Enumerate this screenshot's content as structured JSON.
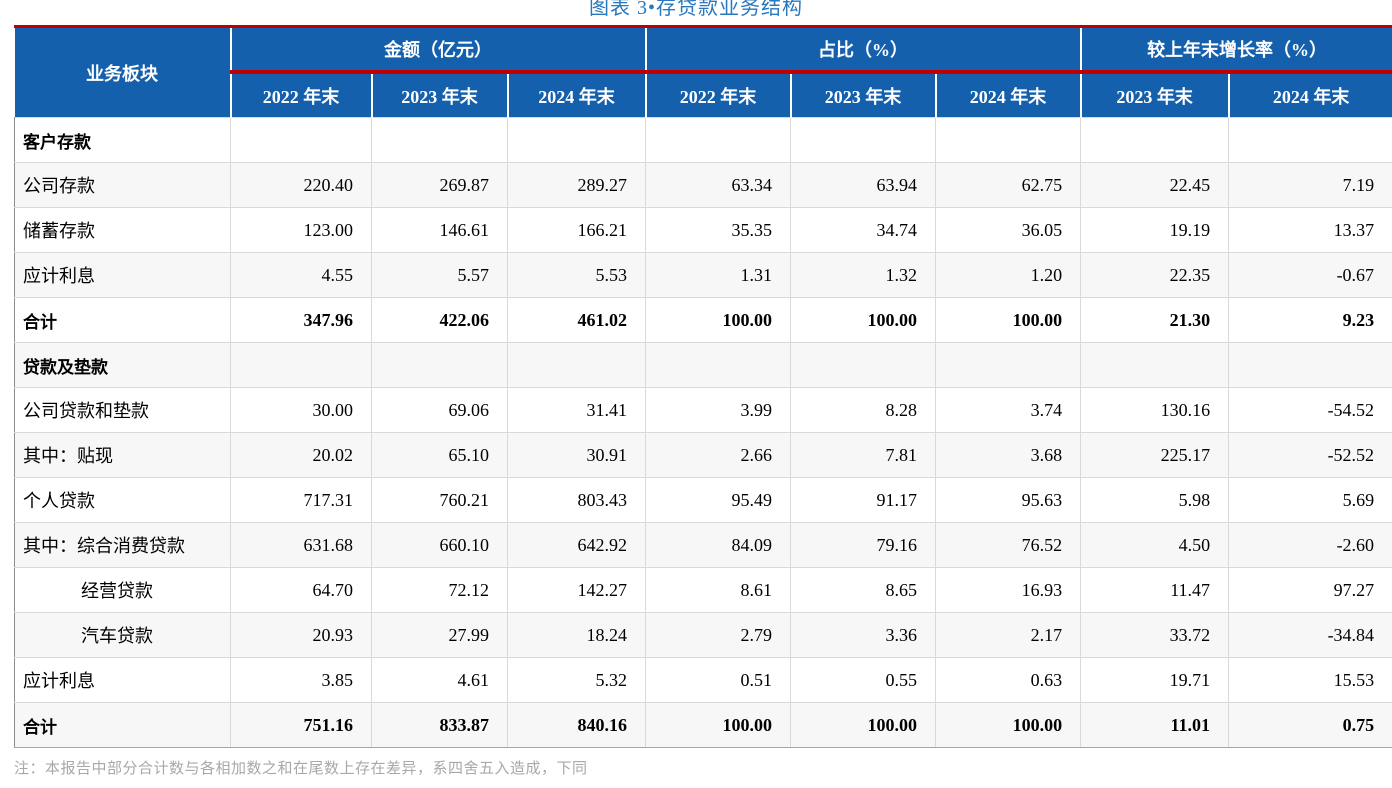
{
  "title": "图表 3•存贷款业务结构",
  "table": {
    "corner_header": "业务板块",
    "col_groups": [
      {
        "label": "金额（亿元）",
        "sub": [
          "2022 年末",
          "2023 年末",
          "2024 年末"
        ]
      },
      {
        "label": "占比（%）",
        "sub": [
          "2022 年末",
          "2023 年末",
          "2024 年末"
        ]
      },
      {
        "label": "较上年末增长率（%）",
        "sub": [
          "2023 年末",
          "2024 年末"
        ]
      }
    ],
    "rows": [
      {
        "label": "客户存款",
        "type": "section",
        "values": [
          "",
          "",
          "",
          "",
          "",
          "",
          "",
          ""
        ]
      },
      {
        "label": "公司存款",
        "type": "data",
        "values": [
          "220.40",
          "269.87",
          "289.27",
          "63.34",
          "63.94",
          "62.75",
          "22.45",
          "7.19"
        ]
      },
      {
        "label": "储蓄存款",
        "type": "data",
        "values": [
          "123.00",
          "146.61",
          "166.21",
          "35.35",
          "34.74",
          "36.05",
          "19.19",
          "13.37"
        ]
      },
      {
        "label": "应计利息",
        "type": "data",
        "values": [
          "4.55",
          "5.57",
          "5.53",
          "1.31",
          "1.32",
          "1.20",
          "22.35",
          "-0.67"
        ]
      },
      {
        "label": "合计",
        "type": "total",
        "values": [
          "347.96",
          "422.06",
          "461.02",
          "100.00",
          "100.00",
          "100.00",
          "21.30",
          "9.23"
        ]
      },
      {
        "label": "贷款及垫款",
        "type": "section",
        "values": [
          "",
          "",
          "",
          "",
          "",
          "",
          "",
          ""
        ]
      },
      {
        "label": "公司贷款和垫款",
        "type": "data",
        "values": [
          "30.00",
          "69.06",
          "31.41",
          "3.99",
          "8.28",
          "3.74",
          "130.16",
          "-54.52"
        ]
      },
      {
        "label": "其中：贴现",
        "type": "data",
        "values": [
          "20.02",
          "65.10",
          "30.91",
          "2.66",
          "7.81",
          "3.68",
          "225.17",
          "-52.52"
        ]
      },
      {
        "label": "个人贷款",
        "type": "data",
        "values": [
          "717.31",
          "760.21",
          "803.43",
          "95.49",
          "91.17",
          "95.63",
          "5.98",
          "5.69"
        ]
      },
      {
        "label": "其中：综合消费贷款",
        "type": "data",
        "values": [
          "631.68",
          "660.10",
          "642.92",
          "84.09",
          "79.16",
          "76.52",
          "4.50",
          "-2.60"
        ]
      },
      {
        "label": "经营贷款",
        "type": "data",
        "indent": true,
        "values": [
          "64.70",
          "72.12",
          "142.27",
          "8.61",
          "8.65",
          "16.93",
          "11.47",
          "97.27"
        ]
      },
      {
        "label": "汽车贷款",
        "type": "data",
        "indent": true,
        "values": [
          "20.93",
          "27.99",
          "18.24",
          "2.79",
          "3.36",
          "2.17",
          "33.72",
          "-34.84"
        ]
      },
      {
        "label": "应计利息",
        "type": "data",
        "values": [
          "3.85",
          "4.61",
          "5.32",
          "0.51",
          "0.55",
          "0.63",
          "19.71",
          "15.53"
        ]
      },
      {
        "label": "合计",
        "type": "total",
        "values": [
          "751.16",
          "833.87",
          "840.16",
          "100.00",
          "100.00",
          "100.00",
          "11.01",
          "0.75"
        ]
      }
    ]
  },
  "footnote": "注：本报告中部分合计数与各相加数之和在尾数上存在差异，系四舍五入造成，下同",
  "colors": {
    "header_blue": "#1560AC",
    "accent_red": "#C00000",
    "title_blue": "#2778BE",
    "zebra_gray": "#F7F7F7"
  }
}
